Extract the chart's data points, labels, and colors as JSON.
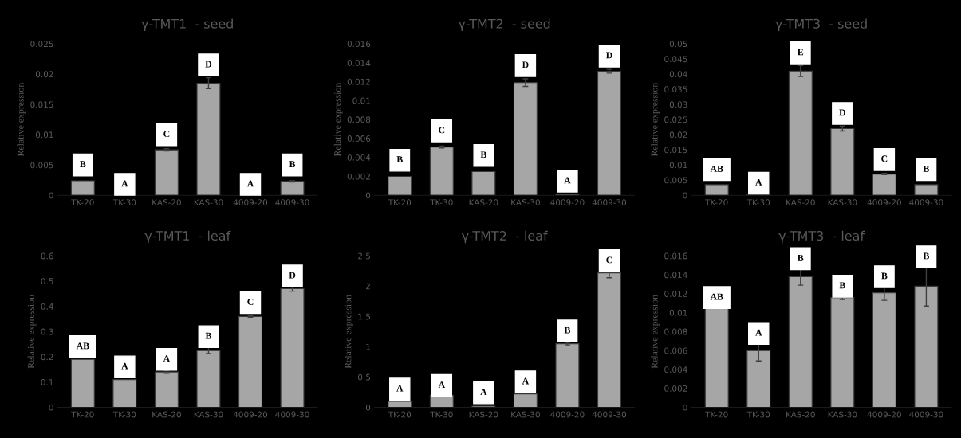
{
  "chart_data": [
    {
      "type": "bar",
      "title": "γ-TMT1  - seed",
      "ylabel": "Relative expression",
      "categories": [
        "TK-20",
        "TK-30",
        "KAS-20",
        "KAS-30",
        "4009-20",
        "4009-30"
      ],
      "color": "#a6a6a6",
      "values": [
        0.0024,
        null,
        0.0075,
        0.0185,
        null,
        0.0023
      ],
      "errors": [
        null,
        null,
        0.0002,
        0.0009,
        null,
        0.0001
      ],
      "ylim": [
        0,
        0.025
      ],
      "yticks": [
        0,
        0.005,
        0.01,
        0.015,
        0.02,
        0.025
      ],
      "grid": false,
      "annotations": [
        {
          "text": "B",
          "x": "TK-20",
          "y": 0.005
        },
        {
          "text": "A",
          "x": "TK-30",
          "y": 0.0018
        },
        {
          "text": "C",
          "x": "KAS-20",
          "y": 0.01
        },
        {
          "text": "D",
          "x": "KAS-30",
          "y": 0.0215
        },
        {
          "text": "A",
          "x": "4009-20",
          "y": 0.0018
        },
        {
          "text": "B",
          "x": "4009-30",
          "y": 0.005
        }
      ]
    },
    {
      "type": "bar",
      "title": "γ-TMT2  - seed",
      "ylabel": "Relative expression",
      "categories": [
        "TK-20",
        "TK-30",
        "KAS-20",
        "KAS-30",
        "4009-20",
        "4009-30"
      ],
      "color": "#a6a6a6",
      "values": [
        0.002,
        0.0051,
        0.0025,
        0.0119,
        0.0001,
        0.0131
      ],
      "errors": [
        null,
        0.0001,
        null,
        0.0004,
        null,
        0.0002
      ],
      "ylim": [
        0,
        0.016
      ],
      "yticks": [
        0,
        0.002,
        0.004,
        0.006,
        0.008,
        0.01,
        0.012,
        0.014,
        0.016
      ],
      "grid": false,
      "annotations": [
        {
          "text": "B",
          "x": "TK-20",
          "y": 0.0037
        },
        {
          "text": "C",
          "x": "TK-30",
          "y": 0.0068
        },
        {
          "text": "B",
          "x": "KAS-20",
          "y": 0.0042
        },
        {
          "text": "D",
          "x": "KAS-30",
          "y": 0.0137
        },
        {
          "text": "A",
          "x": "4009-20",
          "y": 0.0015
        },
        {
          "text": "D",
          "x": "4009-30",
          "y": 0.0147
        }
      ]
    },
    {
      "type": "bar",
      "title": "γ-TMT3  - seed",
      "ylabel": "Relative expression",
      "categories": [
        "TK-20",
        "TK-30",
        "KAS-20",
        "KAS-30",
        "4009-20",
        "4009-30"
      ],
      "color": "#a6a6a6",
      "values": [
        0.0035,
        0.0002,
        0.041,
        0.022,
        0.007,
        0.0035
      ],
      "errors": [
        null,
        null,
        0.0018,
        0.0008,
        0.0002,
        null
      ],
      "ylim": [
        0,
        0.05
      ],
      "yticks": [
        0,
        0.005,
        0.01,
        0.015,
        0.02,
        0.025,
        0.03,
        0.035,
        0.04,
        0.045,
        0.05
      ],
      "grid": false,
      "annotations": [
        {
          "text": "AB",
          "x": "TK-20",
          "y": 0.0085
        },
        {
          "text": "A",
          "x": "TK-30",
          "y": 0.004
        },
        {
          "text": "E",
          "x": "KAS-20",
          "y": 0.047
        },
        {
          "text": "D",
          "x": "KAS-30",
          "y": 0.027
        },
        {
          "text": "C",
          "x": "4009-20",
          "y": 0.0118
        },
        {
          "text": "B",
          "x": "4009-30",
          "y": 0.0085
        }
      ]
    },
    {
      "type": "bar",
      "title": "γ-TMT1  - leaf",
      "ylabel": "Relative expression",
      "categories": [
        "TK-20",
        "TK-30",
        "KAS-20",
        "KAS-30",
        "4009-20",
        "4009-30"
      ],
      "color": "#a6a6a6",
      "values": [
        0.19,
        0.11,
        0.14,
        0.225,
        0.36,
        0.47
      ],
      "errors": [
        null,
        null,
        0.005,
        0.012,
        0.003,
        0.01
      ],
      "ylim": [
        0,
        0.6
      ],
      "yticks": [
        0,
        0.1,
        0.2,
        0.3,
        0.4,
        0.5,
        0.6
      ],
      "grid": false,
      "annotations": [
        {
          "text": "AB",
          "x": "TK-20",
          "y": 0.24
        },
        {
          "text": "A",
          "x": "TK-30",
          "y": 0.16
        },
        {
          "text": "A",
          "x": "KAS-20",
          "y": 0.19
        },
        {
          "text": "B",
          "x": "KAS-30",
          "y": 0.28
        },
        {
          "text": "C",
          "x": "4009-20",
          "y": 0.415
        },
        {
          "text": "D",
          "x": "4009-30",
          "y": 0.52
        }
      ]
    },
    {
      "type": "bar",
      "title": "γ-TMT2  - leaf",
      "ylabel": "Relative expression",
      "categories": [
        "TK-20",
        "TK-30",
        "KAS-20",
        "KAS-30",
        "4009-20",
        "4009-30"
      ],
      "color": "#a6a6a6",
      "values": [
        0.1,
        0.2,
        0.02,
        0.22,
        1.05,
        2.22
      ],
      "errors": [
        null,
        null,
        null,
        null,
        0.02,
        0.08
      ],
      "ylim": [
        0,
        2.5
      ],
      "yticks": [
        0,
        0.5,
        1,
        1.5,
        2,
        2.5
      ],
      "grid": false,
      "annotations": [
        {
          "text": "A",
          "x": "TK-20",
          "y": 0.3
        },
        {
          "text": "A",
          "x": "TK-30",
          "y": 0.36
        },
        {
          "text": "A",
          "x": "KAS-20",
          "y": 0.24
        },
        {
          "text": "A",
          "x": "KAS-30",
          "y": 0.42
        },
        {
          "text": "B",
          "x": "4009-20",
          "y": 1.26
        },
        {
          "text": "C",
          "x": "4009-30",
          "y": 2.42
        }
      ]
    },
    {
      "type": "bar",
      "title": "γ-TMT3  - leaf",
      "ylabel": "Relative expression",
      "categories": [
        "TK-20",
        "TK-30",
        "KAS-20",
        "KAS-30",
        "4009-20",
        "4009-30"
      ],
      "color": "#a6a6a6",
      "values": [
        0.0105,
        0.006,
        0.0138,
        0.0116,
        0.0121,
        0.0128
      ],
      "errors": [
        null,
        0.0011,
        0.0009,
        0.0002,
        0.0008,
        0.0021
      ],
      "ylim": [
        0,
        0.016
      ],
      "yticks": [
        0,
        0.002,
        0.004,
        0.006,
        0.008,
        0.01,
        0.012,
        0.014,
        0.016
      ],
      "grid": false,
      "annotations": [
        {
          "text": "AB",
          "x": "TK-20",
          "y": 0.0116
        },
        {
          "text": "A",
          "x": "TK-30",
          "y": 0.0078
        },
        {
          "text": "B",
          "x": "KAS-20",
          "y": 0.0157
        },
        {
          "text": "B",
          "x": "KAS-30",
          "y": 0.0128
        },
        {
          "text": "B",
          "x": "4009-20",
          "y": 0.0138
        },
        {
          "text": "B",
          "x": "4009-30",
          "y": 0.0159
        }
      ]
    }
  ]
}
